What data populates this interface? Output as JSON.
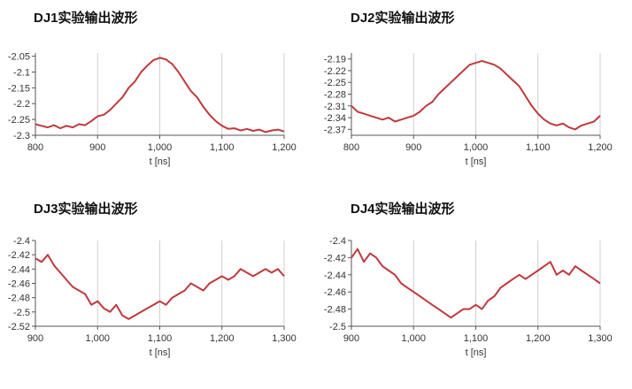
{
  "chart_data": [
    {
      "type": "line",
      "title": "DJ1实验输出波形",
      "xlabel": "t [ns]",
      "ylabel": "",
      "xlim": [
        800,
        1200
      ],
      "ylim": [
        -2.3,
        -2.04
      ],
      "xticks": [
        800,
        900,
        1000,
        1100,
        1200
      ],
      "xtick_labels": [
        "800",
        "900",
        "1,000",
        "1,100",
        "1,200"
      ],
      "yticks": [
        -2.05,
        -2.1,
        -2.15,
        -2.2,
        -2.25,
        -2.3
      ],
      "ytick_labels": [
        "-2.05",
        "-2.1",
        "-2.15",
        "-2.2",
        "-2.25",
        "-2.3"
      ],
      "grid": "vertical",
      "series": [
        {
          "color": "#c0393b",
          "x": [
            800,
            810,
            820,
            830,
            840,
            850,
            860,
            870,
            880,
            890,
            900,
            910,
            920,
            930,
            940,
            950,
            960,
            970,
            980,
            990,
            1000,
            1010,
            1020,
            1030,
            1040,
            1050,
            1060,
            1070,
            1080,
            1090,
            1100,
            1110,
            1120,
            1130,
            1140,
            1150,
            1160,
            1170,
            1180,
            1190,
            1200
          ],
          "y": [
            -2.265,
            -2.27,
            -2.275,
            -2.268,
            -2.278,
            -2.27,
            -2.275,
            -2.265,
            -2.268,
            -2.255,
            -2.24,
            -2.235,
            -2.22,
            -2.2,
            -2.18,
            -2.15,
            -2.13,
            -2.1,
            -2.08,
            -2.062,
            -2.055,
            -2.06,
            -2.075,
            -2.1,
            -2.13,
            -2.16,
            -2.18,
            -2.21,
            -2.235,
            -2.255,
            -2.27,
            -2.28,
            -2.278,
            -2.285,
            -2.28,
            -2.286,
            -2.282,
            -2.29,
            -2.285,
            -2.282,
            -2.288
          ]
        }
      ]
    },
    {
      "type": "line",
      "title": "DJ2实验输出波形",
      "xlabel": "t [ns]",
      "ylabel": "",
      "xlim": [
        800,
        1200
      ],
      "ylim": [
        -2.385,
        -2.175
      ],
      "xticks": [
        800,
        900,
        1000,
        1100,
        1200
      ],
      "xtick_labels": [
        "800",
        "900",
        "1,000",
        "1,100",
        "1,200"
      ],
      "yticks": [
        -2.19,
        -2.22,
        -2.25,
        -2.28,
        -2.31,
        -2.34,
        -2.37
      ],
      "ytick_labels": [
        "-2.19",
        "-2.22",
        "-2.25",
        "-2.28",
        "-2.31",
        "-2.34",
        "-2.37"
      ],
      "grid": "vertical",
      "series": [
        {
          "color": "#c0393b",
          "x": [
            800,
            810,
            820,
            830,
            840,
            850,
            860,
            870,
            880,
            890,
            900,
            910,
            920,
            930,
            940,
            950,
            960,
            970,
            980,
            990,
            1000,
            1010,
            1020,
            1030,
            1040,
            1050,
            1060,
            1070,
            1080,
            1090,
            1100,
            1110,
            1120,
            1130,
            1140,
            1150,
            1160,
            1170,
            1180,
            1190,
            1200
          ],
          "y": [
            -2.31,
            -2.325,
            -2.33,
            -2.335,
            -2.34,
            -2.345,
            -2.34,
            -2.35,
            -2.345,
            -2.34,
            -2.335,
            -2.325,
            -2.31,
            -2.3,
            -2.28,
            -2.265,
            -2.25,
            -2.235,
            -2.22,
            -2.205,
            -2.2,
            -2.195,
            -2.2,
            -2.205,
            -2.215,
            -2.23,
            -2.245,
            -2.26,
            -2.285,
            -2.31,
            -2.33,
            -2.345,
            -2.355,
            -2.36,
            -2.355,
            -2.365,
            -2.37,
            -2.36,
            -2.355,
            -2.35,
            -2.335
          ]
        }
      ]
    },
    {
      "type": "line",
      "title": "DJ3实验输出波形",
      "xlabel": "t [ns]",
      "ylabel": "",
      "xlim": [
        900,
        1300
      ],
      "ylim": [
        -2.52,
        -2.4
      ],
      "xticks": [
        900,
        1000,
        1100,
        1200,
        1300
      ],
      "xtick_labels": [
        "900",
        "1,000",
        "1,100",
        "1,200",
        "1,300"
      ],
      "yticks": [
        -2.4,
        -2.42,
        -2.44,
        -2.46,
        -2.48,
        -2.5,
        -2.52
      ],
      "ytick_labels": [
        "-2.4",
        "-2.42",
        "-2.44",
        "-2.46",
        "-2.48",
        "-2.5",
        "-2.52"
      ],
      "grid": "vertical",
      "series": [
        {
          "color": "#c0393b",
          "x": [
            900,
            910,
            920,
            930,
            940,
            950,
            960,
            970,
            980,
            990,
            1000,
            1010,
            1020,
            1030,
            1040,
            1050,
            1060,
            1070,
            1080,
            1090,
            1100,
            1110,
            1120,
            1130,
            1140,
            1150,
            1160,
            1170,
            1180,
            1190,
            1200,
            1210,
            1220,
            1230,
            1240,
            1250,
            1260,
            1270,
            1280,
            1290,
            1300
          ],
          "y": [
            -2.425,
            -2.43,
            -2.42,
            -2.435,
            -2.445,
            -2.455,
            -2.465,
            -2.47,
            -2.475,
            -2.49,
            -2.485,
            -2.495,
            -2.5,
            -2.49,
            -2.505,
            -2.51,
            -2.505,
            -2.5,
            -2.495,
            -2.49,
            -2.485,
            -2.49,
            -2.48,
            -2.475,
            -2.47,
            -2.46,
            -2.465,
            -2.47,
            -2.46,
            -2.455,
            -2.45,
            -2.455,
            -2.45,
            -2.44,
            -2.445,
            -2.45,
            -2.445,
            -2.44,
            -2.445,
            -2.44,
            -2.45
          ]
        }
      ]
    },
    {
      "type": "line",
      "title": "DJ4实验输出波形",
      "xlabel": "t [ns]",
      "ylabel": "",
      "xlim": [
        900,
        1300
      ],
      "ylim": [
        -2.5,
        -2.4
      ],
      "xticks": [
        900,
        1000,
        1100,
        1200,
        1300
      ],
      "xtick_labels": [
        "900",
        "1,000",
        "1,100",
        "1,200",
        "1,300"
      ],
      "yticks": [
        -2.4,
        -2.42,
        -2.44,
        -2.46,
        -2.48,
        -2.5
      ],
      "ytick_labels": [
        "-2.4",
        "-2.42",
        "-2.44",
        "-2.46",
        "-2.48",
        "-2.5"
      ],
      "grid": "vertical",
      "series": [
        {
          "color": "#c0393b",
          "x": [
            900,
            910,
            920,
            930,
            940,
            950,
            960,
            970,
            980,
            990,
            1000,
            1010,
            1020,
            1030,
            1040,
            1050,
            1060,
            1070,
            1080,
            1090,
            1100,
            1110,
            1120,
            1130,
            1140,
            1150,
            1160,
            1170,
            1180,
            1190,
            1200,
            1210,
            1220,
            1230,
            1240,
            1250,
            1260,
            1270,
            1280,
            1290,
            1300
          ],
          "y": [
            -2.42,
            -2.41,
            -2.425,
            -2.415,
            -2.42,
            -2.43,
            -2.435,
            -2.44,
            -2.45,
            -2.455,
            -2.46,
            -2.465,
            -2.47,
            -2.475,
            -2.48,
            -2.485,
            -2.49,
            -2.485,
            -2.48,
            -2.48,
            -2.475,
            -2.48,
            -2.47,
            -2.465,
            -2.455,
            -2.45,
            -2.445,
            -2.44,
            -2.445,
            -2.44,
            -2.435,
            -2.43,
            -2.425,
            -2.44,
            -2.435,
            -2.44,
            -2.43,
            -2.435,
            -2.44,
            -2.445,
            -2.45
          ]
        }
      ]
    }
  ]
}
